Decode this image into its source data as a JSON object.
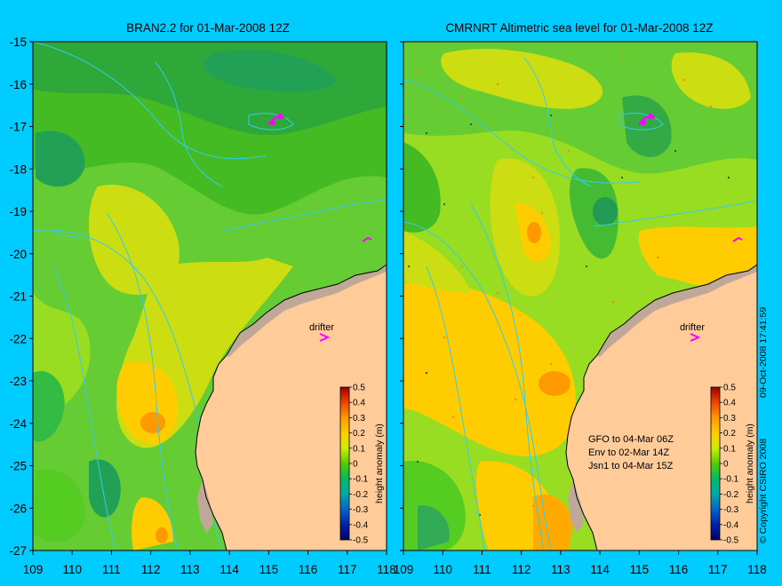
{
  "colors": {
    "background": "#00ccff",
    "land": "#ffcc99",
    "coast_shade": "#c0a898",
    "contour": "#33ccee",
    "track": "#ff00ff"
  },
  "panels": [
    {
      "id": "left",
      "title": "BRAN2.2 for 01-Mar-2008 12Z",
      "drifter_label": "drifter",
      "legend_lines": []
    },
    {
      "id": "right",
      "title": "CMRNRT Altimetric sea level  for 01-Mar-2008 12Z",
      "drifter_label": "drifter",
      "legend_lines": [
        "GFO to 04-Mar 06Z",
        "Env to 02-Mar 14Z",
        "Jsn1 to 04-Mar 15Z"
      ]
    }
  ],
  "axes": {
    "lon_ticks": [
      "109",
      "110",
      "111",
      "112",
      "113",
      "114",
      "115",
      "116",
      "117",
      "118"
    ],
    "lat_ticks": [
      "-15",
      "-16",
      "-17",
      "-18",
      "-19",
      "-20",
      "-21",
      "-22",
      "-23",
      "-24",
      "-25",
      "-26",
      "-27"
    ],
    "lon_range": [
      109,
      118
    ],
    "lat_range": [
      -27,
      -15
    ]
  },
  "colorbar": {
    "label": "height anomaly (m)",
    "ticks": [
      "0.5",
      "0.4",
      "0.3",
      "0.2",
      "0.1",
      "0",
      "-0.1",
      "-0.2",
      "-0.3",
      "-0.4",
      "-0.5"
    ]
  },
  "copyright": "© Copyright CSIRO 2008",
  "timestamp": "09-Oct-2008 17:41:59"
}
